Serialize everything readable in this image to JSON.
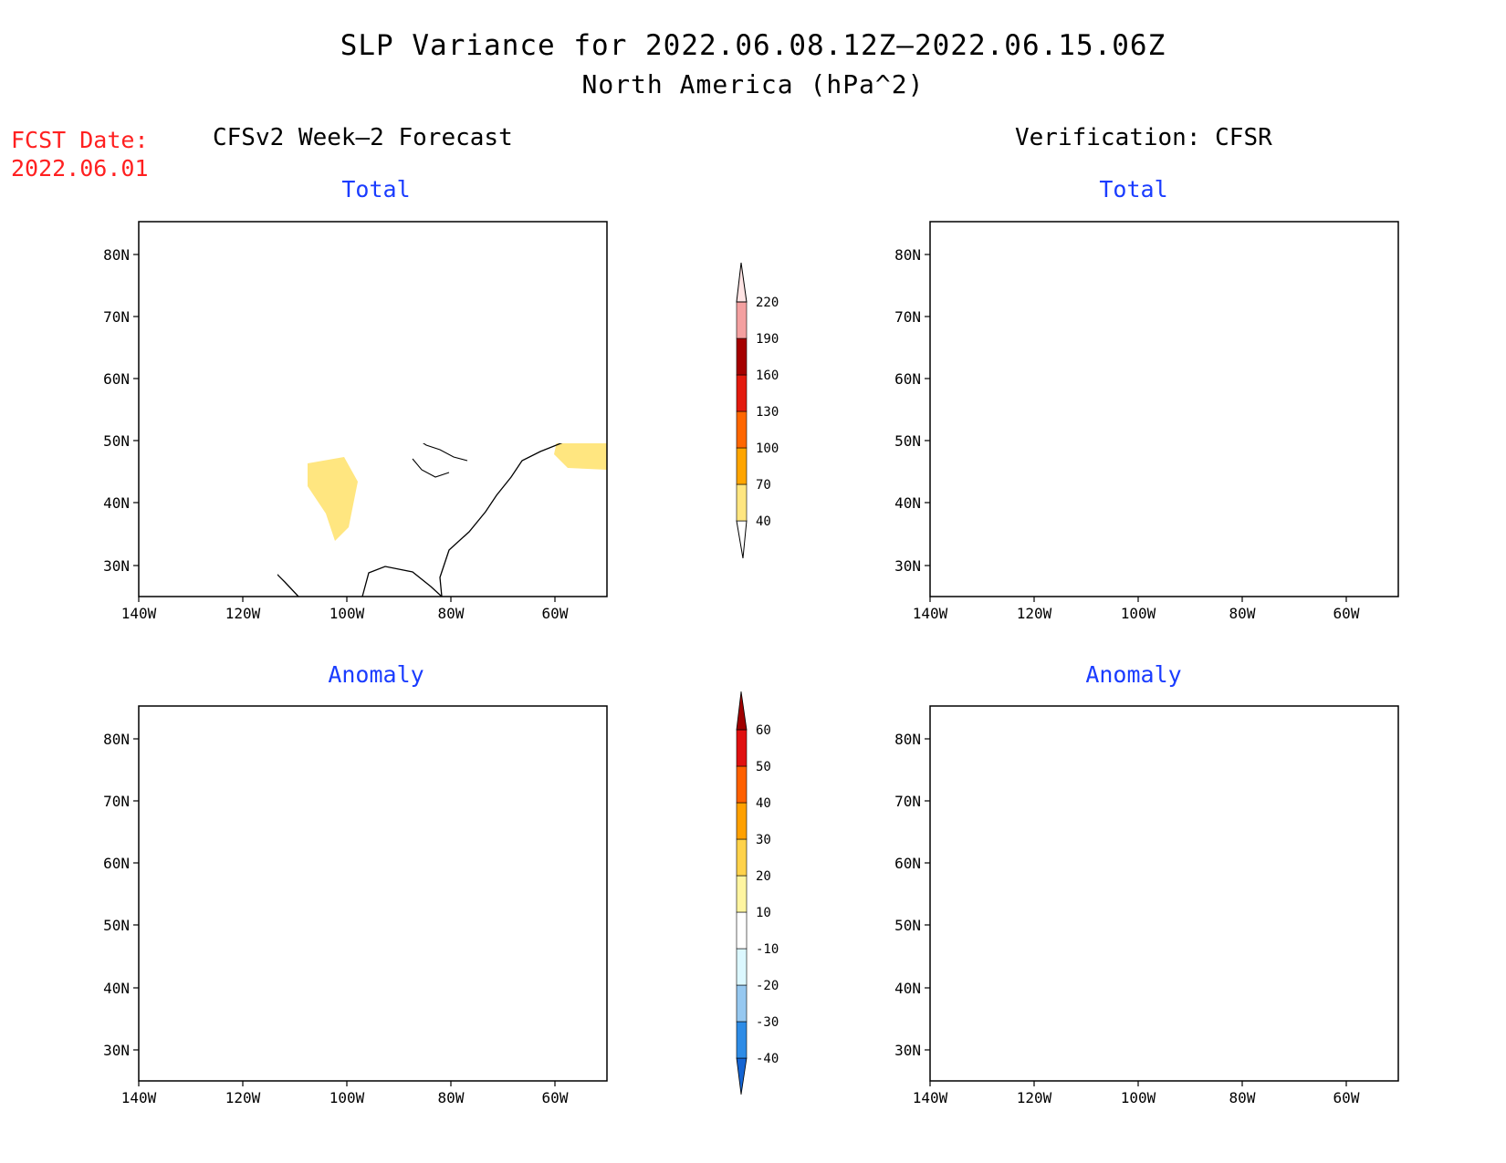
{
  "header": {
    "title": "SLP Variance for 2022.06.08.12Z–2022.06.15.06Z",
    "subtitle": "North America (hPa^2)"
  },
  "fcst": {
    "label": "FCST Date:",
    "date": "2022.06.01"
  },
  "columns": {
    "left_title": "CFSv2 Week–2 Forecast",
    "right_title": "Verification: CFSR"
  },
  "panels": {
    "forecast_total_title": "Total",
    "verification_total_title": "Total",
    "forecast_anomaly_title": "Anomaly",
    "verification_anomaly_title": "Anomaly"
  },
  "axes": {
    "lat_labels": [
      "80N",
      "70N",
      "60N",
      "50N",
      "40N",
      "30N"
    ],
    "lon_labels": [
      "140W",
      "120W",
      "100W",
      "80W",
      "60W"
    ]
  },
  "total_colorbar": {
    "levels": [
      "40",
      "70",
      "100",
      "130",
      "160",
      "190",
      "220"
    ],
    "colors": [
      "#ffe680",
      "#ffa500",
      "#ff6600",
      "#e31a0e",
      "#a50000",
      "#f4a0a0",
      "#ffe4e4"
    ]
  },
  "anomaly_colorbar": {
    "levels": [
      "-40",
      "-30",
      "-20",
      "-10",
      "10",
      "20",
      "30",
      "40",
      "50",
      "60"
    ],
    "colors": [
      "#1464d2",
      "#2e8ce6",
      "#96c8f0",
      "#dcf8ff",
      "#ffffff",
      "#fff5a0",
      "#ffd24a",
      "#ffa000",
      "#ff6000",
      "#e01010",
      "#a00000"
    ]
  }
}
